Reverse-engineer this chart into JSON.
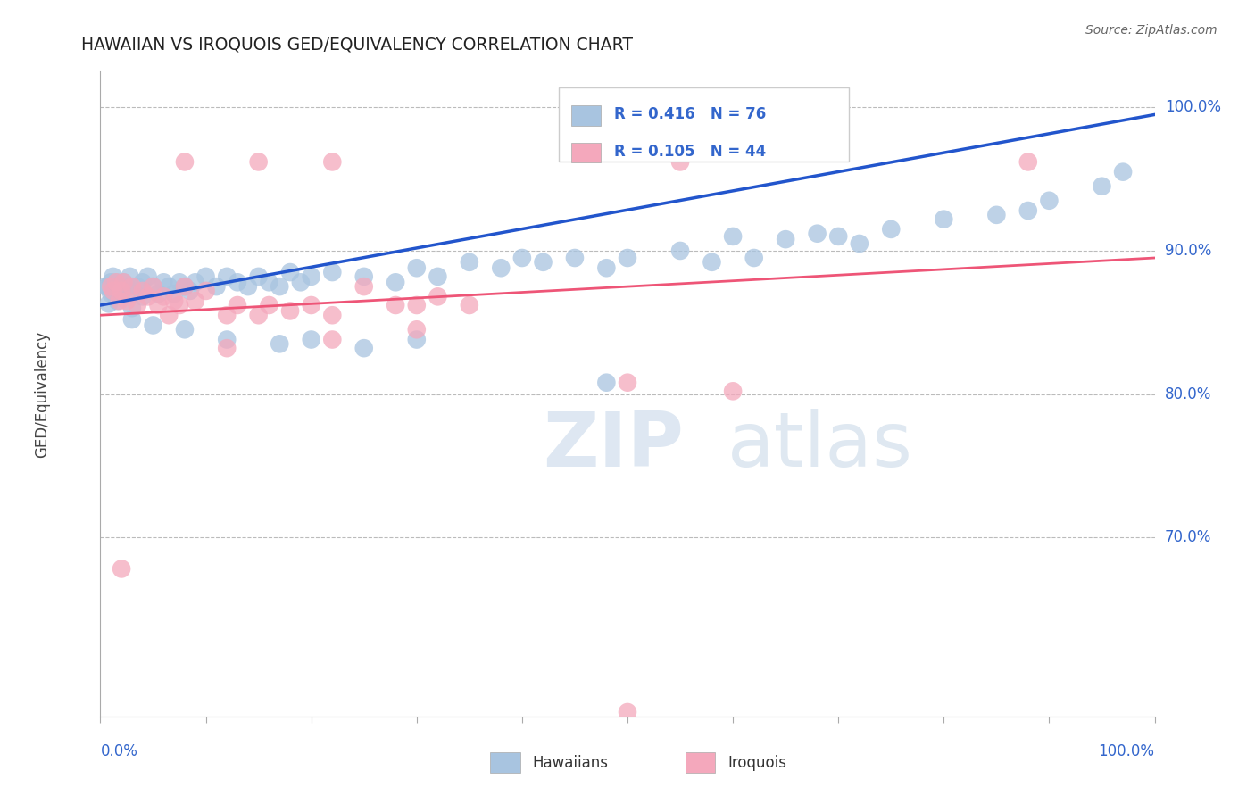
{
  "title": "HAWAIIAN VS IROQUOIS GED/EQUIVALENCY CORRELATION CHART",
  "source": "Source: ZipAtlas.com",
  "ylabel": "GED/Equivalency",
  "ytick_labels": [
    "100.0%",
    "90.0%",
    "80.0%",
    "70.0%"
  ],
  "ytick_values": [
    1.0,
    0.9,
    0.8,
    0.7
  ],
  "xrange": [
    0.0,
    1.0
  ],
  "yrange": [
    0.575,
    1.025
  ],
  "R_hawaiian": 0.416,
  "N_hawaiian": 76,
  "R_iroquois": 0.105,
  "N_iroquois": 44,
  "hawaiian_color": "#a8c4e0",
  "iroquois_color": "#f4a8bc",
  "trendline_hawaiian_color": "#2255cc",
  "trendline_iroquois_color": "#ee5577",
  "hawaiian_trend_x0": 0.0,
  "hawaiian_trend_y0": 0.862,
  "hawaiian_trend_x1": 1.0,
  "hawaiian_trend_y1": 0.995,
  "iroquois_trend_x0": 0.0,
  "iroquois_trend_y0": 0.855,
  "iroquois_trend_x1": 1.0,
  "iroquois_trend_y1": 0.895,
  "hawaiian_points": [
    [
      0.005,
      0.875
    ],
    [
      0.007,
      0.875
    ],
    [
      0.008,
      0.863
    ],
    [
      0.01,
      0.87
    ],
    [
      0.01,
      0.878
    ],
    [
      0.012,
      0.882
    ],
    [
      0.013,
      0.87
    ],
    [
      0.015,
      0.878
    ],
    [
      0.016,
      0.865
    ],
    [
      0.018,
      0.875
    ],
    [
      0.02,
      0.87
    ],
    [
      0.022,
      0.878
    ],
    [
      0.025,
      0.875
    ],
    [
      0.028,
      0.882
    ],
    [
      0.03,
      0.87
    ],
    [
      0.03,
      0.86
    ],
    [
      0.035,
      0.875
    ],
    [
      0.04,
      0.868
    ],
    [
      0.04,
      0.878
    ],
    [
      0.045,
      0.882
    ],
    [
      0.05,
      0.875
    ],
    [
      0.055,
      0.87
    ],
    [
      0.06,
      0.878
    ],
    [
      0.065,
      0.875
    ],
    [
      0.07,
      0.87
    ],
    [
      0.075,
      0.878
    ],
    [
      0.08,
      0.875
    ],
    [
      0.085,
      0.872
    ],
    [
      0.09,
      0.878
    ],
    [
      0.1,
      0.882
    ],
    [
      0.11,
      0.875
    ],
    [
      0.12,
      0.882
    ],
    [
      0.13,
      0.878
    ],
    [
      0.14,
      0.875
    ],
    [
      0.15,
      0.882
    ],
    [
      0.16,
      0.878
    ],
    [
      0.17,
      0.875
    ],
    [
      0.18,
      0.885
    ],
    [
      0.19,
      0.878
    ],
    [
      0.2,
      0.882
    ],
    [
      0.22,
      0.885
    ],
    [
      0.25,
      0.882
    ],
    [
      0.28,
      0.878
    ],
    [
      0.3,
      0.888
    ],
    [
      0.32,
      0.882
    ],
    [
      0.35,
      0.892
    ],
    [
      0.38,
      0.888
    ],
    [
      0.4,
      0.895
    ],
    [
      0.42,
      0.892
    ],
    [
      0.45,
      0.895
    ],
    [
      0.48,
      0.888
    ],
    [
      0.5,
      0.895
    ],
    [
      0.55,
      0.9
    ],
    [
      0.58,
      0.892
    ],
    [
      0.6,
      0.91
    ],
    [
      0.62,
      0.895
    ],
    [
      0.65,
      0.908
    ],
    [
      0.68,
      0.912
    ],
    [
      0.7,
      0.91
    ],
    [
      0.72,
      0.905
    ],
    [
      0.75,
      0.915
    ],
    [
      0.8,
      0.922
    ],
    [
      0.85,
      0.925
    ],
    [
      0.88,
      0.928
    ],
    [
      0.9,
      0.935
    ],
    [
      0.95,
      0.945
    ],
    [
      0.97,
      0.955
    ],
    [
      0.03,
      0.852
    ],
    [
      0.05,
      0.848
    ],
    [
      0.08,
      0.845
    ],
    [
      0.12,
      0.838
    ],
    [
      0.17,
      0.835
    ],
    [
      0.2,
      0.838
    ],
    [
      0.25,
      0.832
    ],
    [
      0.3,
      0.838
    ],
    [
      0.48,
      0.808
    ]
  ],
  "iroquois_points": [
    [
      0.01,
      0.875
    ],
    [
      0.012,
      0.872
    ],
    [
      0.015,
      0.878
    ],
    [
      0.018,
      0.865
    ],
    [
      0.02,
      0.872
    ],
    [
      0.022,
      0.878
    ],
    [
      0.025,
      0.865
    ],
    [
      0.03,
      0.875
    ],
    [
      0.035,
      0.862
    ],
    [
      0.04,
      0.872
    ],
    [
      0.045,
      0.868
    ],
    [
      0.05,
      0.875
    ],
    [
      0.055,
      0.862
    ],
    [
      0.06,
      0.868
    ],
    [
      0.065,
      0.855
    ],
    [
      0.07,
      0.865
    ],
    [
      0.075,
      0.862
    ],
    [
      0.08,
      0.875
    ],
    [
      0.09,
      0.865
    ],
    [
      0.1,
      0.872
    ],
    [
      0.12,
      0.855
    ],
    [
      0.13,
      0.862
    ],
    [
      0.15,
      0.855
    ],
    [
      0.16,
      0.862
    ],
    [
      0.18,
      0.858
    ],
    [
      0.2,
      0.862
    ],
    [
      0.22,
      0.855
    ],
    [
      0.25,
      0.875
    ],
    [
      0.28,
      0.862
    ],
    [
      0.3,
      0.862
    ],
    [
      0.32,
      0.868
    ],
    [
      0.35,
      0.862
    ],
    [
      0.08,
      0.962
    ],
    [
      0.15,
      0.962
    ],
    [
      0.22,
      0.962
    ],
    [
      0.55,
      0.962
    ],
    [
      0.88,
      0.962
    ],
    [
      0.5,
      0.808
    ],
    [
      0.6,
      0.802
    ],
    [
      0.02,
      0.678
    ],
    [
      0.5,
      0.578
    ],
    [
      0.12,
      0.832
    ],
    [
      0.22,
      0.838
    ],
    [
      0.3,
      0.845
    ]
  ]
}
